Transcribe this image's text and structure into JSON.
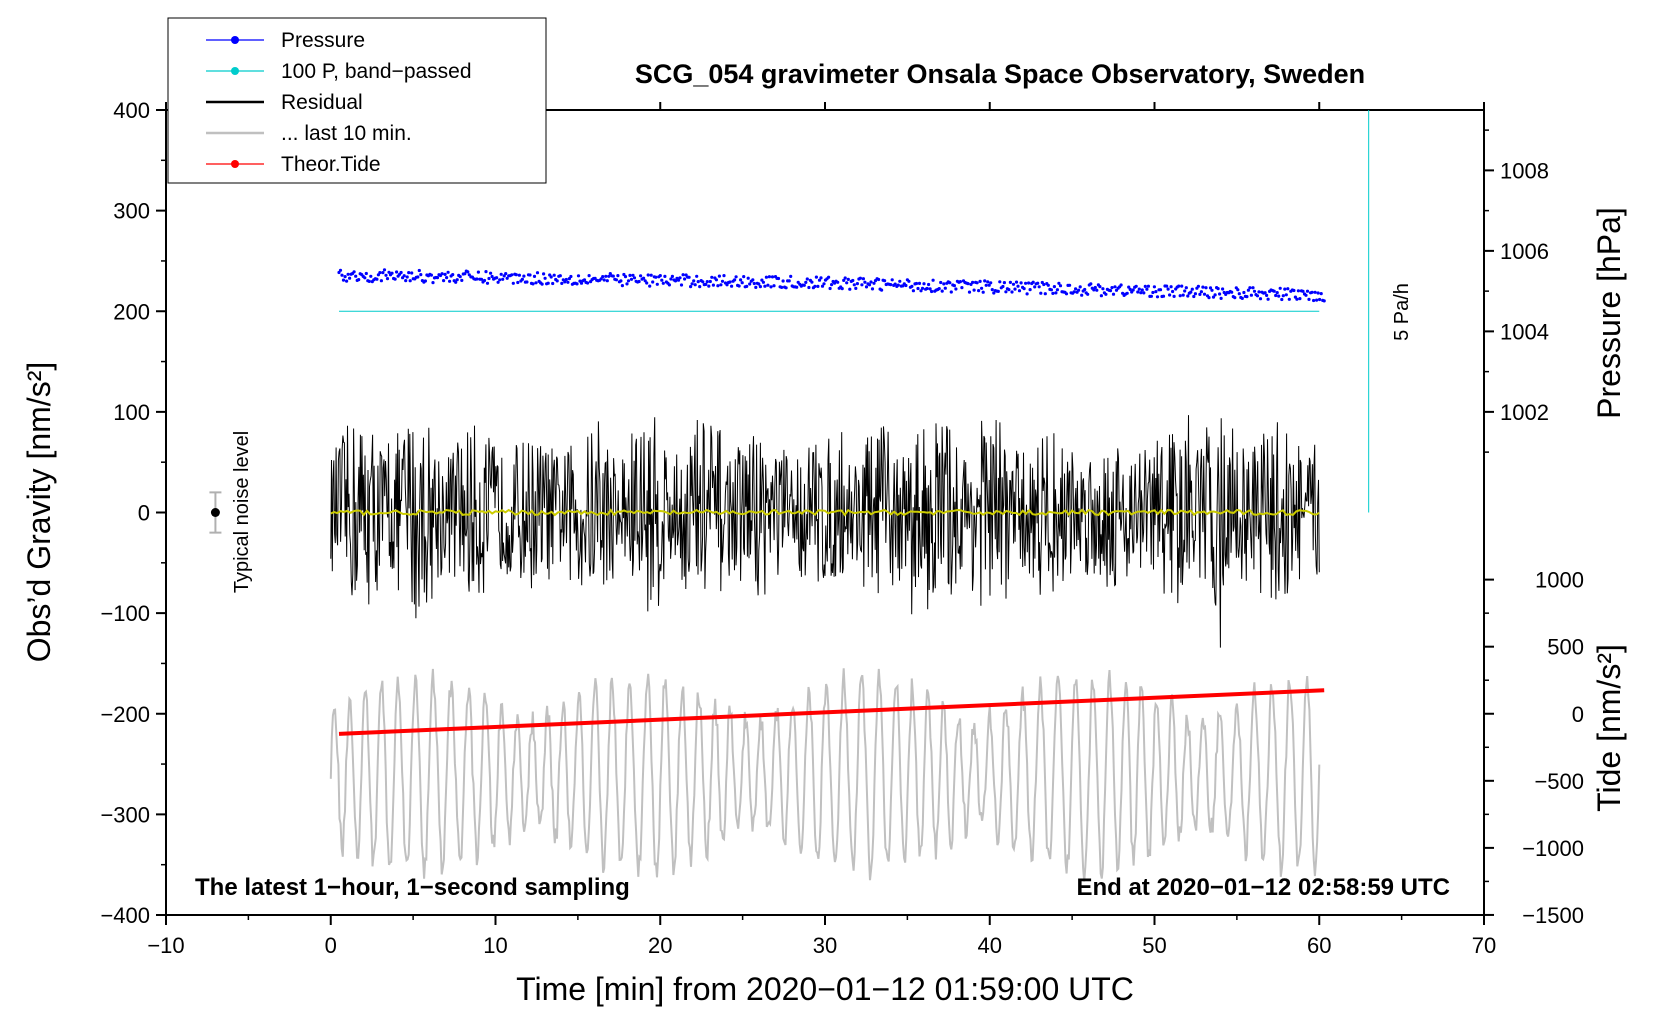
{
  "chart_data": {
    "type": "line",
    "title": "SCG_054 gravimeter Onsala Space Observatory, Sweden",
    "xlabel": "Time [min] from 2020−01−12 01:59:00 UTC",
    "ylabel": "Obs’d Gravity [nm/s²]",
    "xlim": [
      -10,
      70
    ],
    "ylim": [
      -400,
      400
    ],
    "x_ticks": [
      -10,
      0,
      10,
      20,
      30,
      40,
      50,
      60,
      70
    ],
    "x_tick_labels": [
      "−10",
      "0",
      "10",
      "20",
      "30",
      "40",
      "50",
      "60",
      "70"
    ],
    "y_ticks": [
      -400,
      -300,
      -200,
      -100,
      0,
      100,
      200,
      300,
      400
    ],
    "y_tick_labels": [
      "−400",
      "−300",
      "−200",
      "−100",
      "0",
      "100",
      "200",
      "300",
      "400"
    ],
    "grid": false,
    "right_axis_pressure": {
      "label": "Pressure [hPa]",
      "ticks": [
        1002,
        1004,
        1006,
        1008
      ],
      "tick_labels": [
        "1002",
        "1004",
        "1006",
        "1008"
      ],
      "gravity_at_1002": 100,
      "gravity_per_hPa": 40
    },
    "right_axis_tide": {
      "label": "Tide [nm/s²]",
      "ticks": [
        -1500,
        -1000,
        -500,
        0,
        500,
        1000
      ],
      "tick_labels": [
        "−1500",
        "−1000",
        "−500",
        "0",
        "500",
        "1000"
      ],
      "gravity_at_0": -200,
      "gravity_per_unit": 0.1333
    },
    "legend": {
      "position": "top-left",
      "entries": [
        {
          "label": "Pressure",
          "color": "#0000ff",
          "style": "line-dot"
        },
        {
          "label": "100 P, band−passed",
          "color": "#00cccc",
          "style": "line-dot"
        },
        {
          "label": "Residual",
          "color": "#000000",
          "style": "line"
        },
        {
          "label": "... last 10 min.",
          "color": "#c0c0c0",
          "style": "line"
        },
        {
          "label": "Theor.Tide",
          "color": "#ff0000",
          "style": "line-dot"
        }
      ]
    },
    "series": [
      {
        "name": "Pressure",
        "color": "#0000ff",
        "axis": "pressure_hPa",
        "x_range": [
          0.5,
          60.3
        ],
        "start": 1005.4,
        "mid": 1005.2,
        "end": 1004.9,
        "scatter": 0.15
      },
      {
        "name": "100 P, band−passed",
        "color": "#00cccc",
        "axis": "gravity",
        "x": [
          0.5,
          60
        ],
        "y": [
          200,
          200
        ]
      },
      {
        "name": "Residual",
        "color": "#000000",
        "axis": "gravity",
        "x_range": [
          0,
          60
        ],
        "typical_amplitude": 90,
        "max": 185,
        "min": -170
      },
      {
        "name": "... last 10 min.",
        "color": "#c0c0c0",
        "axis": "gravity",
        "x_range": [
          0,
          60
        ],
        "center": -260,
        "typical_amplitude": 60,
        "max": -150,
        "min": -410
      },
      {
        "name": "Theor.Tide",
        "color": "#ff0000",
        "axis": "tide_nm_s2",
        "x": [
          0.5,
          60.3
        ],
        "y": [
          -150,
          175
        ]
      },
      {
        "name": "Long-period residual",
        "color": "#cccc00",
        "axis": "gravity",
        "x_range": [
          0,
          60
        ],
        "y": 0
      }
    ],
    "noise_bar": {
      "x": -7,
      "y": 0,
      "half_range": 20,
      "label": "Typical noise level"
    },
    "rate_marker": {
      "x": 63,
      "y_from": 0,
      "y_to": 400,
      "color": "#00cccc",
      "label": "5 Pa/h"
    },
    "annotations": {
      "bottom_left": "The latest 1−hour, 1−second sampling",
      "bottom_right": "End at 2020−01−12 02:58:59 UTC"
    }
  }
}
